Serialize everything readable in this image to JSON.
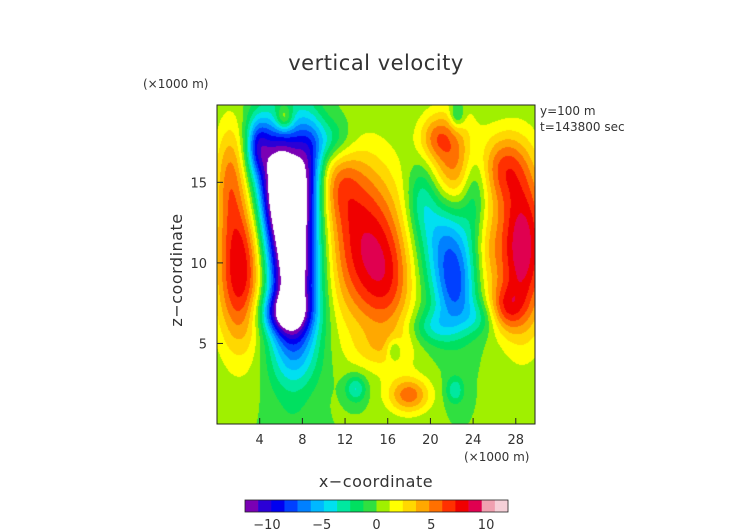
{
  "chart_data": {
    "type": "heatmap",
    "title": "vertical velocity",
    "xlabel": "x−coordinate",
    "ylabel": "z−coordinate",
    "x_unit": "(×1000 m)",
    "z_unit": "(×1000 m)",
    "annotations": [
      "y=100 m",
      "t=143800 sec"
    ],
    "xlim": [
      0,
      29.8
    ],
    "ylim": [
      0,
      19.8
    ],
    "x_ticks": [
      {
        "value": 4,
        "label": "4"
      },
      {
        "value": 8,
        "label": "8"
      },
      {
        "value": 12,
        "label": "12"
      },
      {
        "value": 16,
        "label": "16"
      },
      {
        "value": 20,
        "label": "20"
      },
      {
        "value": 24,
        "label": "24"
      },
      {
        "value": 28,
        "label": "28"
      }
    ],
    "y_ticks": [
      {
        "value": 5,
        "label": "5"
      },
      {
        "value": 10,
        "label": "10"
      },
      {
        "value": 15,
        "label": "15"
      }
    ],
    "colorbar": {
      "range": [
        -12,
        12
      ],
      "ticks": [
        {
          "value": -10,
          "label": "−10"
        },
        {
          "value": -5,
          "label": "−5"
        },
        {
          "value": 0,
          "label": "0"
        },
        {
          "value": 5,
          "label": "5"
        },
        {
          "value": 10,
          "label": "10"
        }
      ],
      "colors": [
        "#7a00b4",
        "#2b00d6",
        "#0000f0",
        "#0040ff",
        "#0080ff",
        "#00b8ff",
        "#00e0f0",
        "#00e8a0",
        "#00e060",
        "#30e040",
        "#a0f000",
        "#ffff00",
        "#ffd800",
        "#ffa800",
        "#ff7000",
        "#ff3000",
        "#f00000",
        "#e00050",
        "#f0a0b0",
        "#f6d0d8"
      ],
      "clip_below_color": "#ffffff"
    },
    "features": [
      {
        "x": 7.2,
        "z": 10.2,
        "sx": 1.7,
        "sz": 4.6,
        "amp": -15.5,
        "region": "strong downdraft core (white, below scale)"
      },
      {
        "x": 5.6,
        "z": 15.0,
        "sx": 1.4,
        "sz": 2.6,
        "amp": -10.5
      },
      {
        "x": 3.8,
        "z": 17.3,
        "sx": 0.8,
        "sz": 1.3,
        "amp": -6.5
      },
      {
        "x": 8.6,
        "z": 16.0,
        "sx": 1.0,
        "sz": 2.2,
        "amp": -5.5
      },
      {
        "x": 10.6,
        "z": 17.6,
        "sx": 1.5,
        "sz": 1.0,
        "amp": -3.5
      },
      {
        "x": 6.2,
        "z": 6.9,
        "sx": 1.6,
        "sz": 0.9,
        "amp": -6.0
      },
      {
        "x": 2.2,
        "z": 9.6,
        "sx": 1.6,
        "sz": 3.4,
        "amp": 8.5
      },
      {
        "x": 1.2,
        "z": 15.6,
        "sx": 1.0,
        "sz": 2.4,
        "amp": 4.0
      },
      {
        "x": 13.8,
        "z": 11.2,
        "sx": 2.6,
        "sz": 3.6,
        "amp": 7.8
      },
      {
        "x": 11.2,
        "z": 15.0,
        "sx": 1.6,
        "sz": 1.8,
        "amp": 3.5
      },
      {
        "x": 16.2,
        "z": 8.6,
        "sx": 1.7,
        "sz": 2.4,
        "amp": 3.5
      },
      {
        "x": 21.6,
        "z": 11.6,
        "sx": 1.8,
        "sz": 2.6,
        "amp": -7.5
      },
      {
        "x": 22.4,
        "z": 8.0,
        "sx": 1.3,
        "sz": 1.8,
        "amp": -5.0
      },
      {
        "x": 19.2,
        "z": 14.0,
        "sx": 1.0,
        "sz": 1.6,
        "amp": -3.0
      },
      {
        "x": 24.1,
        "z": 14.8,
        "sx": 0.9,
        "sz": 1.8,
        "amp": -3.5
      },
      {
        "x": 22.2,
        "z": 15.5,
        "sx": 1.7,
        "sz": 2.5,
        "amp": 6.8
      },
      {
        "x": 20.5,
        "z": 17.8,
        "sx": 1.2,
        "sz": 1.0,
        "amp": 3.5
      },
      {
        "x": 28.6,
        "z": 11.0,
        "sx": 1.7,
        "sz": 3.6,
        "amp": 9.5
      },
      {
        "x": 27.0,
        "z": 7.2,
        "sx": 1.2,
        "sz": 1.0,
        "amp": 4.0
      },
      {
        "x": 26.8,
        "z": 16.0,
        "sx": 1.5,
        "sz": 1.5,
        "amp": 4.5
      },
      {
        "x": 25.4,
        "z": 10.8,
        "sx": 1.0,
        "sz": 2.0,
        "amp": 2.5
      },
      {
        "x": 24.6,
        "z": 6.6,
        "sx": 1.2,
        "sz": 0.8,
        "amp": -2.5
      },
      {
        "x": 20.2,
        "z": 6.0,
        "sx": 1.4,
        "sz": 0.8,
        "amp": -3.0
      },
      {
        "x": 15.8,
        "z": 4.6,
        "sx": 2.2,
        "sz": 0.9,
        "amp": 1.8
      },
      {
        "x": 18.0,
        "z": 1.8,
        "sx": 1.4,
        "sz": 0.8,
        "amp": 5.5
      },
      {
        "x": 13.0,
        "z": 2.2,
        "sx": 0.7,
        "sz": 0.6,
        "amp": -4.0
      },
      {
        "x": 22.3,
        "z": 2.1,
        "sx": 0.6,
        "sz": 0.6,
        "amp": -3.5
      },
      {
        "x": 16.6,
        "z": 4.6,
        "sx": 0.5,
        "sz": 0.5,
        "amp": -3.0
      },
      {
        "x": 6.3,
        "z": 19.0,
        "sx": 0.6,
        "sz": 0.6,
        "amp": 5.0
      },
      {
        "x": 22.5,
        "z": 19.2,
        "sx": 0.5,
        "sz": 0.6,
        "amp": -3.5
      },
      {
        "x": 7.5,
        "z": 1.6,
        "sx": 2.0,
        "sz": 1.2,
        "amp": 0.8
      }
    ]
  }
}
